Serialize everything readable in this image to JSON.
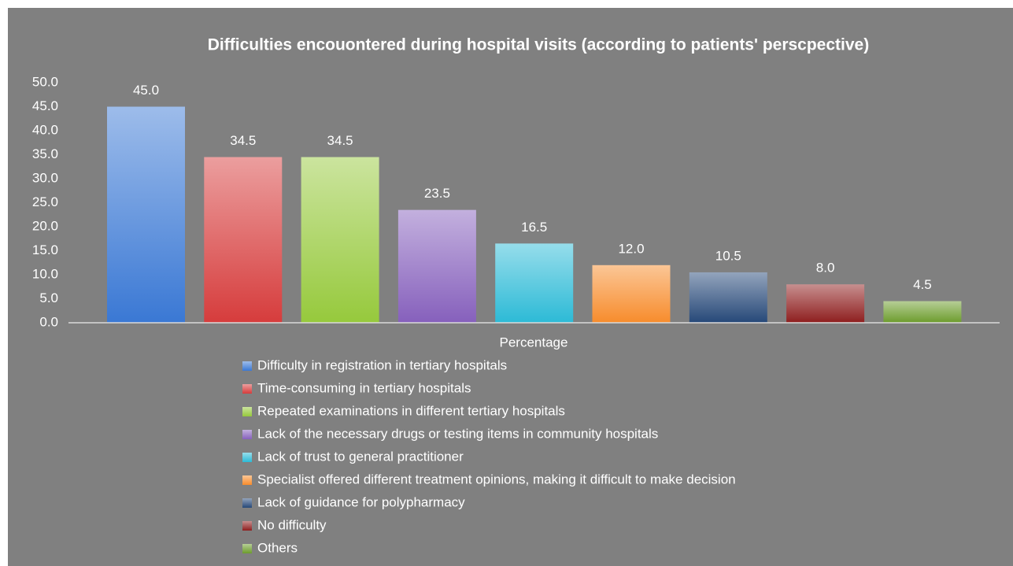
{
  "chart_data": {
    "type": "bar",
    "title": "Difficulties encouontered during hospital visits (according to patients' perscpective)",
    "categories": [
      "Percentage"
    ],
    "series": [
      {
        "name": "Difficulty in registration in tertiary hospitals",
        "color": "#3a78d4",
        "values": [
          45
        ],
        "value_labels": [
          "45.0"
        ]
      },
      {
        "name": "Time-consuming in tertiary hospitals",
        "color": "#d63c3c",
        "values": [
          34.5
        ],
        "value_labels": [
          "34.5"
        ]
      },
      {
        "name": "Repeated examinations in different tertiary hospitals",
        "color": "#96c93c",
        "values": [
          34.5
        ],
        "value_labels": [
          "34.5"
        ]
      },
      {
        "name": "Lack of the necessary drugs or testing items in community hospitals",
        "color": "#8660bc",
        "values": [
          23.5
        ],
        "value_labels": [
          "23.5"
        ]
      },
      {
        "name": "Lack of trust to general practitioner",
        "color": "#2cbad6",
        "values": [
          16.5
        ],
        "value_labels": [
          "16.5"
        ]
      },
      {
        "name": "Specialist offered different treatment opinions, making it difficult to make decision",
        "color": "#f78c2c",
        "values": [
          12
        ],
        "value_labels": [
          "12.0"
        ]
      },
      {
        "name": "Lack of guidance for polypharmacy",
        "color": "#264878",
        "values": [
          10.5
        ],
        "value_labels": [
          "10.5"
        ]
      },
      {
        "name": "No difficulty",
        "color": "#8e1e1e",
        "values": [
          8
        ],
        "value_labels": [
          "8.0"
        ]
      },
      {
        "name": "Others",
        "color": "#6c9c2c",
        "values": [
          4.5
        ],
        "value_labels": [
          "4.5"
        ]
      }
    ],
    "ylim": [
      0,
      50
    ],
    "yticks": [
      {
        "value": 0,
        "label": "0.0"
      },
      {
        "value": 5,
        "label": "5.0"
      },
      {
        "value": 10,
        "label": "10.0"
      },
      {
        "value": 15,
        "label": "15.0"
      },
      {
        "value": 20,
        "label": "20.0"
      },
      {
        "value": 25,
        "label": "25.0"
      },
      {
        "value": 30,
        "label": "30.0"
      },
      {
        "value": 35,
        "label": "35.0"
      },
      {
        "value": 40,
        "label": "40.0"
      },
      {
        "value": 45,
        "label": "45.0"
      },
      {
        "value": 50,
        "label": "50.0"
      }
    ],
    "grid": false
  }
}
